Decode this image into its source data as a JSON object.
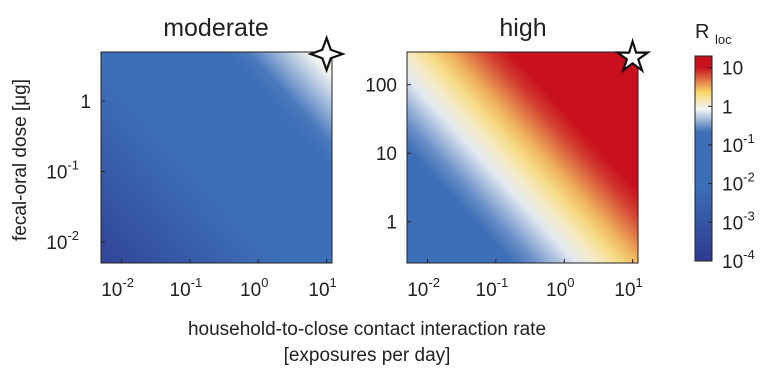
{
  "colors": {
    "low": "#2e3a8f",
    "mid_low": "#3d6fb8",
    "mid": "#f4f6f6",
    "mid_high": "#f8d56a",
    "high": "#c8101e",
    "axis": "#222222"
  },
  "shared": {
    "xlabel_line1": "household-to-close contact interaction rate",
    "xlabel_line2": "[exposures per day]",
    "ylabel": "fecal-oral dose  [μg]",
    "star_icon": "star-icon"
  },
  "chart_data": [
    {
      "type": "heatmap",
      "title": "moderate",
      "x_scale": "log",
      "y_scale": "log",
      "xlim": [
        0.005,
        12
      ],
      "ylim": [
        0.005,
        5
      ],
      "x_ticks": [
        {
          "value": 0.01,
          "base": "10",
          "exp": "-2"
        },
        {
          "value": 0.1,
          "base": "10",
          "exp": "-1"
        },
        {
          "value": 1,
          "base": "10",
          "exp": "0"
        },
        {
          "value": 10,
          "base": "10",
          "exp": "1"
        }
      ],
      "y_ticks": [
        {
          "value": 0.01,
          "base": "10",
          "exp": "-2"
        },
        {
          "value": 0.1,
          "base": "10",
          "exp": "-1"
        },
        {
          "value": 1,
          "base": "1",
          "exp": ""
        }
      ],
      "color_field": {
        "log10_R_at_min": -3.6,
        "log10_R_at_max": 0.2
      },
      "marker": {
        "x": 10,
        "y": 5
      }
    },
    {
      "type": "heatmap",
      "title": "high",
      "x_scale": "log",
      "y_scale": "log",
      "xlim": [
        0.005,
        12
      ],
      "ylim": [
        0.25,
        300
      ],
      "x_ticks": [
        {
          "value": 0.01,
          "base": "10",
          "exp": "-2"
        },
        {
          "value": 0.1,
          "base": "10",
          "exp": "-1"
        },
        {
          "value": 1,
          "base": "10",
          "exp": "0"
        },
        {
          "value": 10,
          "base": "10",
          "exp": "1"
        }
      ],
      "y_ticks": [
        {
          "value": 1,
          "base": "1",
          "exp": ""
        },
        {
          "value": 10,
          "base": "10",
          "exp": ""
        },
        {
          "value": 100,
          "base": "100",
          "exp": ""
        }
      ],
      "color_field": {
        "log10_R_at_min": -1.7,
        "log10_R_at_max": 2.4
      },
      "marker": {
        "x": 10,
        "y": 250
      }
    }
  ],
  "colorbar": {
    "label_main": "R",
    "label_sub": "loc",
    "scale": "log",
    "range": [
      0.0001,
      20
    ],
    "ticks": [
      {
        "value": 10,
        "base": "10",
        "exp": ""
      },
      {
        "value": 1,
        "base": "1",
        "exp": ""
      },
      {
        "value": 0.1,
        "base": "10",
        "exp": "-1"
      },
      {
        "value": 0.01,
        "base": "10",
        "exp": "-2"
      },
      {
        "value": 0.001,
        "base": "10",
        "exp": "-3"
      },
      {
        "value": 0.0001,
        "base": "10",
        "exp": "-4"
      }
    ]
  }
}
